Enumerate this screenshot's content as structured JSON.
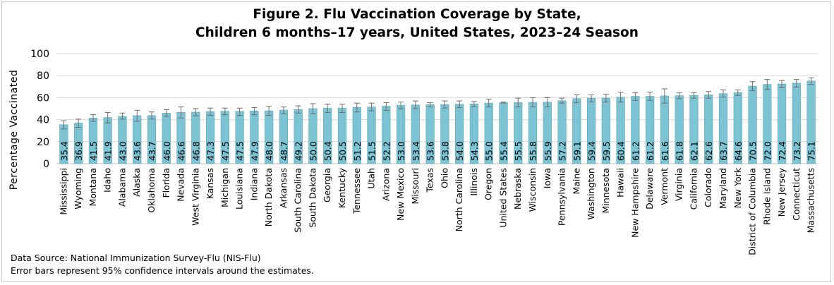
{
  "chart_data": {
    "type": "bar",
    "title_line1": "Figure 2. Flu Vaccination Coverage by State,",
    "title_line2": "Children 6 months–17 years, United States, 2023–24 Season",
    "ylabel": "Percentage Vaccinated",
    "xlabel": "",
    "ylim": [
      0,
      100
    ],
    "yticks": [
      0,
      20,
      40,
      60,
      80,
      100
    ],
    "grid": true,
    "bar_color": "#7cc3d3",
    "bar_edge_color": "#5aa8bb",
    "error_bar_color": "#6d6d6d",
    "categories": [
      "Mississippi",
      "Wyoming",
      "Montana",
      "Idaho",
      "Alabama",
      "Alaska",
      "Oklahoma",
      "Florida",
      "Nevada",
      "West Virginia",
      "Kansas",
      "Michigan",
      "Louisiana",
      "Indiana",
      "North Dakota",
      "Arkansas",
      "South Carolina",
      "South Dakota",
      "Georgia",
      "Kentucky",
      "Tennessee",
      "Utah",
      "Arizona",
      "New Mexico",
      "Missouri",
      "Texas",
      "Ohio",
      "North Carolina",
      "Illinois",
      "Oregon",
      "United States",
      "Nebraska",
      "Wisconsin",
      "Iowa",
      "Pennsylvania",
      "Maine",
      "Washington",
      "Minnesota",
      "Hawaii",
      "New Hampshire",
      "Delaware",
      "Vermont",
      "Virginia",
      "California",
      "Colorado",
      "Maryland",
      "New York",
      "District of Columbia",
      "Rhode Island",
      "New Jersey",
      "Connecticut",
      "Massachusetts"
    ],
    "values": [
      35.4,
      36.9,
      41.5,
      41.9,
      43.0,
      43.6,
      43.7,
      46.0,
      46.6,
      46.8,
      47.3,
      47.5,
      47.5,
      47.9,
      48.0,
      48.7,
      49.2,
      50.0,
      50.4,
      50.5,
      51.2,
      51.5,
      52.2,
      53.0,
      53.4,
      53.6,
      53.8,
      54.0,
      54.3,
      55.0,
      55.4,
      55.5,
      55.8,
      55.9,
      57.2,
      59.1,
      59.4,
      59.5,
      60.4,
      61.2,
      61.2,
      61.6,
      61.8,
      62.1,
      62.6,
      63.7,
      64.6,
      70.5,
      72.0,
      72.4,
      73.2,
      75.1
    ],
    "value_labels": [
      "35.4",
      "36.9",
      "41.5",
      "41.9",
      "43.0",
      "43.6",
      "43.7",
      "46.0",
      "46.6",
      "46.8",
      "47.3",
      "47.5",
      "47.5",
      "47.9",
      "48.0",
      "48.7",
      "49.2",
      "50.0",
      "50.4",
      "50.5",
      "51.2",
      "51.5",
      "52.2",
      "53.0",
      "53.4",
      "53.6",
      "53.8",
      "54.0",
      "54.3",
      "55.0",
      "55.4",
      "55.5",
      "55.8",
      "55.9",
      "57.2",
      "59.1",
      "59.4",
      "59.5",
      "60.4",
      "61.2",
      "61.2",
      "61.6",
      "61.8",
      "62.1",
      "62.6",
      "63.7",
      "64.6",
      "70.5",
      "72.0",
      "72.4",
      "73.2",
      "75.1"
    ],
    "error_low": [
      31.5,
      33.0,
      38.5,
      37.0,
      40.5,
      38.5,
      40.5,
      43.0,
      41.5,
      43.5,
      44.0,
      44.5,
      44.0,
      44.5,
      44.0,
      45.5,
      46.0,
      45.5,
      46.5,
      46.5,
      47.0,
      48.0,
      48.5,
      50.0,
      50.0,
      51.5,
      50.5,
      51.0,
      52.0,
      51.5,
      55.0,
      51.5,
      51.5,
      51.5,
      55.0,
      55.5,
      56.0,
      56.0,
      56.0,
      57.5,
      57.5,
      55.0,
      59.0,
      59.5,
      59.5,
      60.5,
      62.0,
      66.5,
      67.5,
      69.0,
      69.5,
      72.0
    ],
    "error_high": [
      39.0,
      40.5,
      44.5,
      46.5,
      46.0,
      48.5,
      47.0,
      49.0,
      51.5,
      50.0,
      50.5,
      50.5,
      50.5,
      51.0,
      52.0,
      51.5,
      52.5,
      54.5,
      54.0,
      54.0,
      55.0,
      55.0,
      55.5,
      56.0,
      57.0,
      55.5,
      57.0,
      57.0,
      56.5,
      58.5,
      56.0,
      59.5,
      60.0,
      60.0,
      59.5,
      62.5,
      62.5,
      63.0,
      65.0,
      64.5,
      65.0,
      68.0,
      64.5,
      64.5,
      65.5,
      67.0,
      67.0,
      74.5,
      76.5,
      75.5,
      76.5,
      78.0
    ]
  },
  "footnotes": {
    "source": "Data Source: National Immunization Survey-Flu (NIS-Flu)",
    "note": "Error bars represent 95% confidence intervals around the estimates."
  }
}
